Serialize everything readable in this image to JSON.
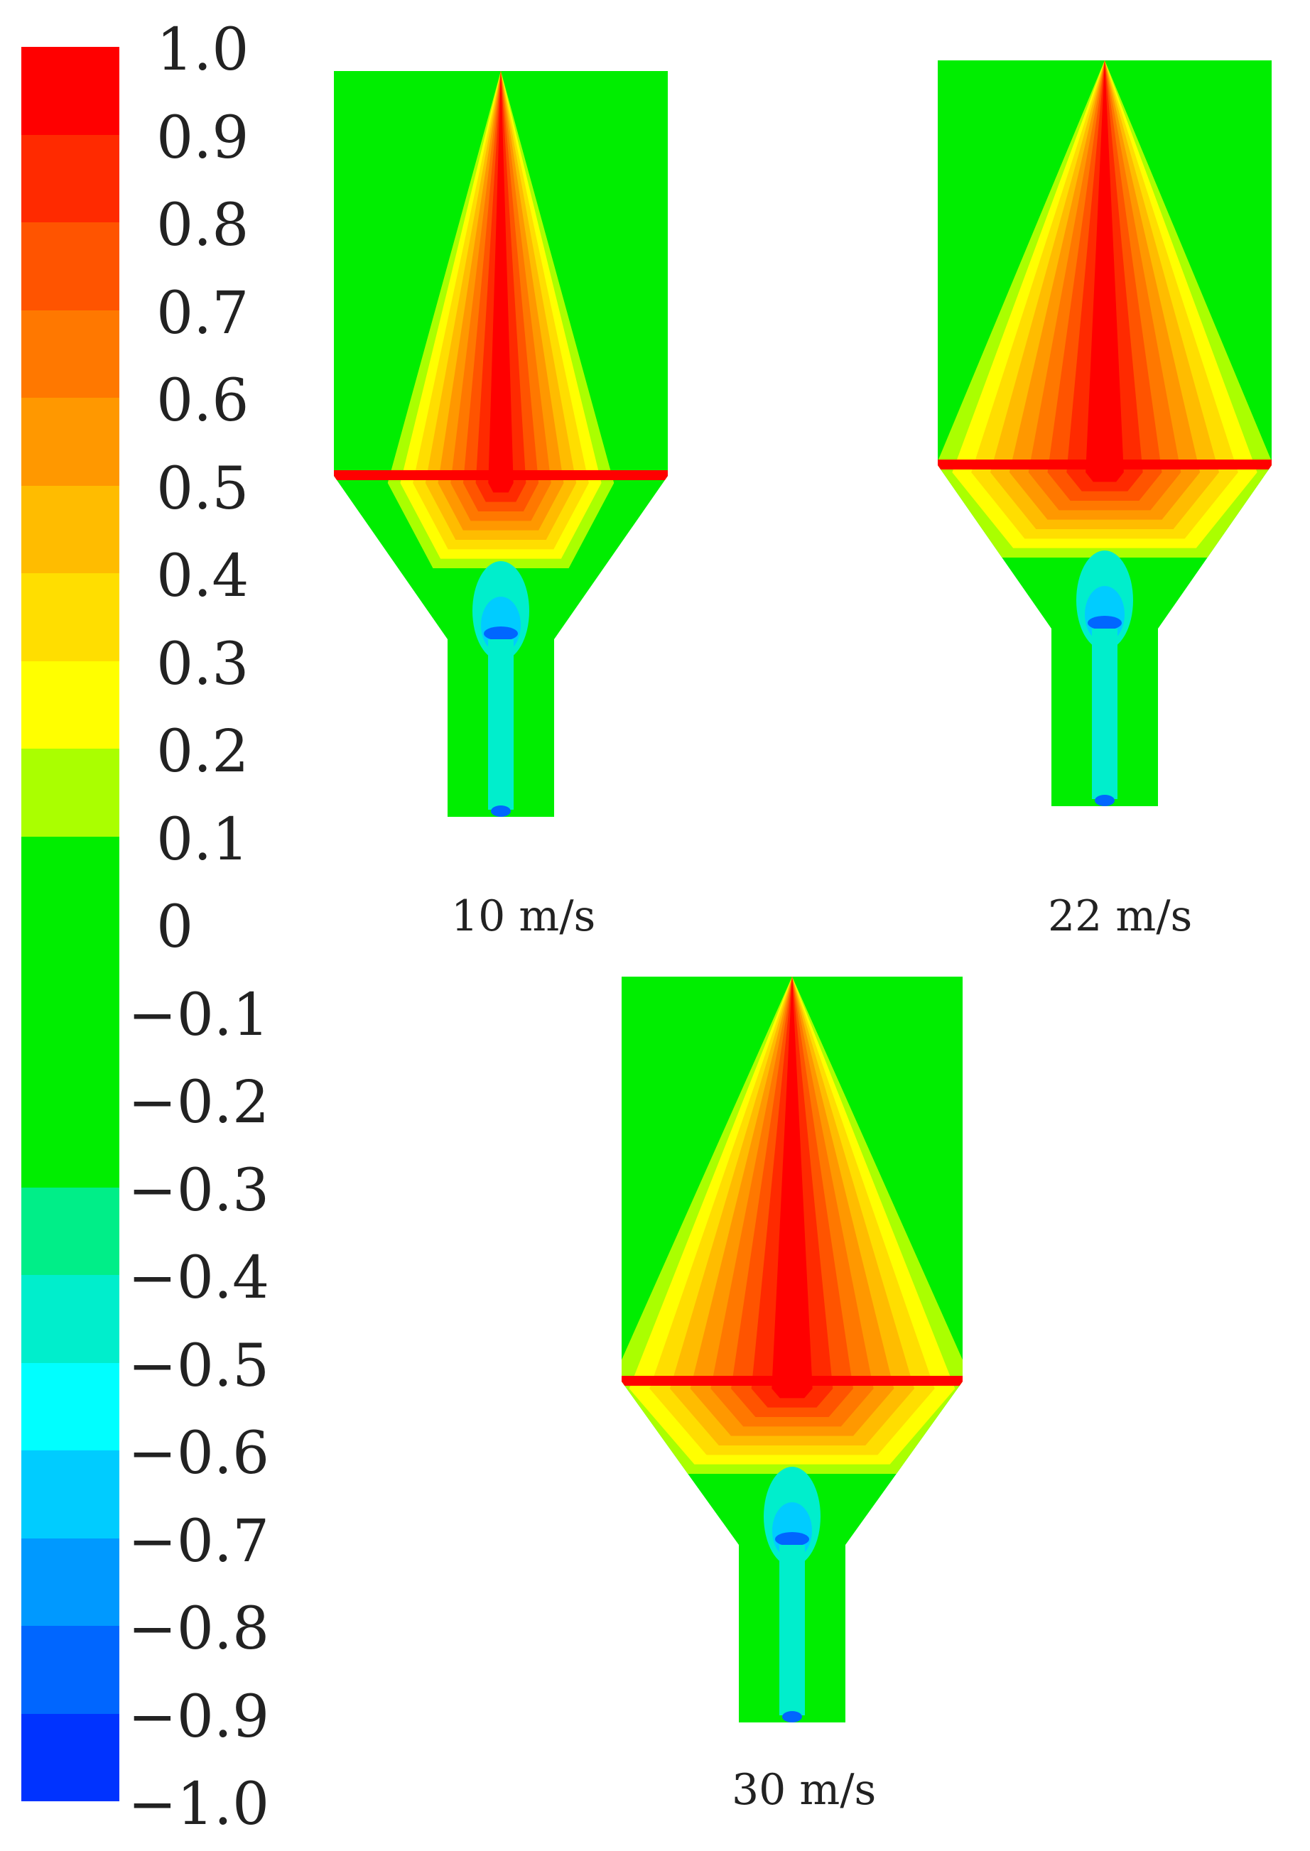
{
  "colorbar": {
    "ticks": [
      "1.0",
      "0.9",
      "0.8",
      "0.7",
      "0.6",
      "0.5",
      "0.4",
      "0.3",
      "0.2",
      "0.1",
      "0",
      "−0.1",
      "−0.2",
      "−0.3",
      "−0.4",
      "−0.5",
      "−0.6",
      "−0.7",
      "−0.8",
      "−0.9",
      "−1.0"
    ],
    "colors": [
      "#ff0000",
      "#ff2a00",
      "#ff5400",
      "#ff7800",
      "#ff9800",
      "#ffbc00",
      "#ffde00",
      "#ffff00",
      "#aaff00",
      "#00ee00",
      "#00ee00",
      "#00ee00",
      "#00ee00",
      "#00ee88",
      "#00eecc",
      "#00ffff",
      "#00ccff",
      "#0099ff",
      "#0066ff",
      "#0033ff",
      "#0000ff"
    ]
  },
  "cases": [
    {
      "label": "10 m/s"
    },
    {
      "label": "22 m/s"
    },
    {
      "label": "30 m/s"
    }
  ]
}
